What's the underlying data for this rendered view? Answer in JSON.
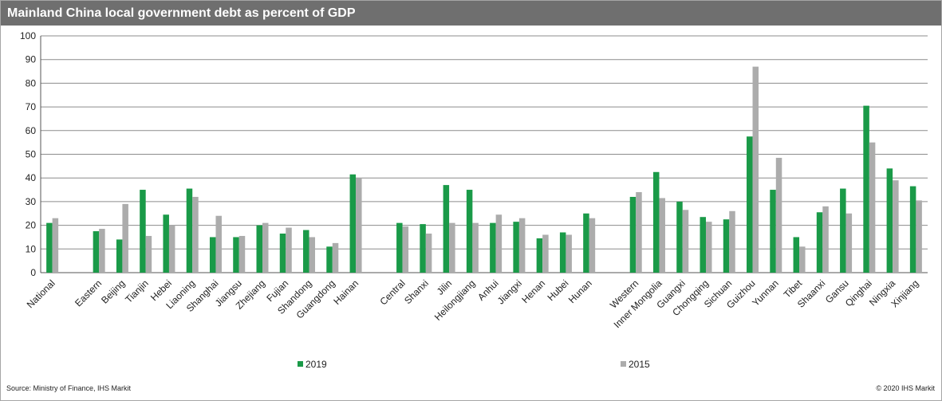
{
  "header": {
    "title": "Mainland China local government debt as percent of GDP"
  },
  "footer": {
    "source": "Source: Ministry of Finance, IHS Markit",
    "copyright": "© 2020 IHS Markit"
  },
  "colors": {
    "series_2019": "#1a9a48",
    "series_2015": "#acacac",
    "title_bar": "#6f6f6f",
    "grid": "#8c8c8c"
  },
  "chart_data": {
    "type": "bar",
    "title": "Mainland China local government debt as percent of GDP",
    "xlabel": "",
    "ylabel": "",
    "ylim": [
      0,
      100
    ],
    "yticks": [
      0,
      10,
      20,
      30,
      40,
      50,
      60,
      70,
      80,
      90,
      100
    ],
    "grid": true,
    "legend_position": "bottom-center",
    "categories": [
      "National",
      "",
      "Eastern",
      "Beijing",
      "Tianjin",
      "Hebei",
      "Liaoning",
      "Shanghai",
      "Jiangsu",
      "Zhejiang",
      "Fujian",
      "Shandong",
      "Guangdong",
      "Hainan",
      "",
      "Central",
      "Shanxi",
      "Jilin",
      "Heilongjiang",
      "Anhui",
      "Jiangxi",
      "Henan",
      "Hubei",
      "Hunan",
      "",
      "Western",
      "Inner Mongolia",
      "Guangxi",
      "Chongqing",
      "Sichuan",
      "Guizhou",
      "Yunnan",
      "Tibet",
      "Shaanxi",
      "Gansu",
      "Qinghai",
      "Ningxia",
      "Xinjiang"
    ],
    "series": [
      {
        "name": "2019",
        "values": [
          21,
          null,
          17.5,
          14,
          35,
          24.5,
          35.5,
          15,
          15,
          20,
          16.5,
          18,
          11,
          41.5,
          null,
          21,
          20.5,
          37,
          35,
          21,
          21.5,
          14.5,
          17,
          25,
          null,
          32,
          42.5,
          30,
          23.5,
          22.5,
          57.5,
          35,
          15,
          25.5,
          35.5,
          70.5,
          44,
          36.5
        ]
      },
      {
        "name": "2015",
        "values": [
          23,
          null,
          18.5,
          29,
          15.5,
          20,
          32,
          24,
          15.5,
          21,
          19,
          15,
          12.5,
          40,
          null,
          19.5,
          16.5,
          21,
          21,
          24.5,
          23,
          16,
          16,
          23,
          null,
          34,
          31.5,
          26.5,
          21.5,
          26,
          87,
          48.5,
          11,
          28,
          25,
          55,
          39,
          30.5
        ]
      }
    ]
  }
}
